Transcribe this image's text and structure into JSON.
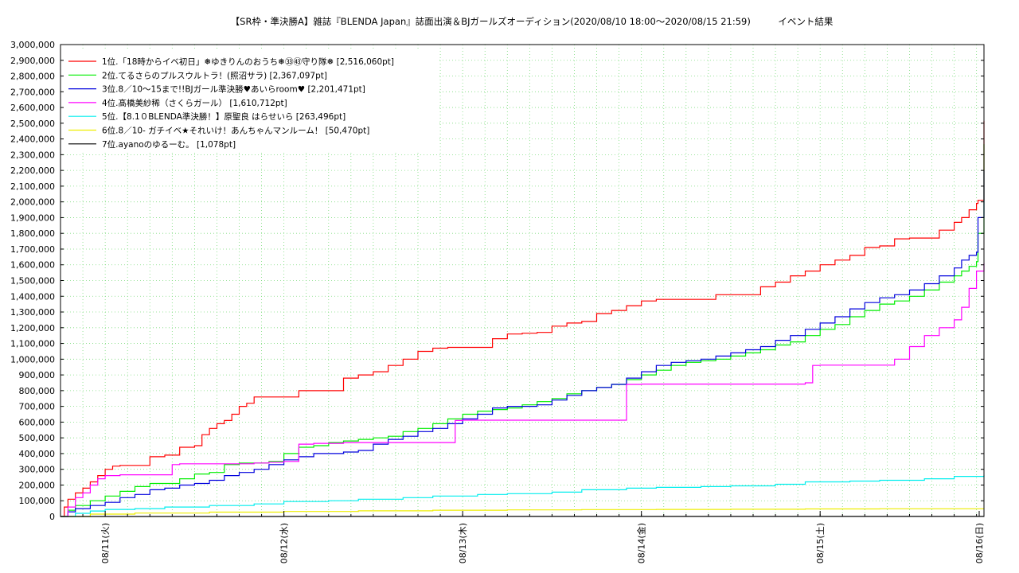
{
  "chart_data": {
    "type": "line",
    "title": "【SR枠・準決勝A】雑誌『BLENDA Japan』誌面出演＆BJガールズオーディション(2020/08/10 18:00〜2020/08/15 21:59)　　　イベント結果",
    "xlabel": "",
    "ylabel": "",
    "x_unit": "hours since 2020/08/10 18:00",
    "xlim": [
      0,
      124.0
    ],
    "ylim": [
      0,
      3000000
    ],
    "y_ticks": [
      0,
      100000,
      200000,
      300000,
      400000,
      500000,
      600000,
      700000,
      800000,
      900000,
      1000000,
      1100000,
      1200000,
      1300000,
      1400000,
      1500000,
      1600000,
      1700000,
      1800000,
      1900000,
      2000000,
      2100000,
      2200000,
      2300000,
      2400000,
      2500000,
      2600000,
      2700000,
      2800000,
      2900000,
      3000000
    ],
    "y_tick_labels": [
      "0",
      "100,000",
      "200,000",
      "300,000",
      "400,000",
      "500,000",
      "600,000",
      "700,000",
      "800,000",
      "900,000",
      "1,000,000",
      "1,100,000",
      "1,200,000",
      "1,300,000",
      "1,400,000",
      "1,500,000",
      "1,600,000",
      "1,700,000",
      "1,800,000",
      "1,900,000",
      "2,000,000",
      "2,100,000",
      "2,200,000",
      "2,300,000",
      "2,400,000",
      "2,500,000",
      "2,600,000",
      "2,700,000",
      "2,800,000",
      "2,900,000",
      "3,000,000"
    ],
    "x_ticks": [
      6,
      30,
      54,
      78,
      102,
      126
    ],
    "x_tick_labels": [
      "08/11(火)",
      "08/12(水)",
      "08/13(木)",
      "08/14(金)",
      "08/15(土)",
      "08/16(日)"
    ],
    "grid": true,
    "legend_position": "top-left",
    "series": [
      {
        "name": "1位.「18時からイベ初日」❅ゆきりんのおうち❅㉝㊸守り隊❅ [2,516,060pt]",
        "color": "#ff0000",
        "x": [
          0,
          0.5,
          1,
          2,
          3,
          4,
          5,
          6,
          7,
          8,
          9,
          10,
          12,
          14,
          16,
          18,
          19,
          20,
          21,
          22,
          23,
          24,
          25,
          26,
          27,
          28,
          30,
          32,
          34,
          36,
          38,
          40,
          42,
          44,
          46,
          48,
          50,
          52,
          54,
          56,
          58,
          60,
          62,
          64,
          66,
          68,
          70,
          72,
          74,
          76,
          78,
          80,
          82,
          84,
          86,
          88,
          90,
          92,
          94,
          96,
          98,
          100,
          102,
          104,
          106,
          108,
          110,
          112,
          114,
          116,
          118,
          120,
          121,
          122,
          123,
          123.2,
          124
        ],
        "values": [
          0,
          60000,
          110000,
          150000,
          180000,
          220000,
          260000,
          300000,
          320000,
          325000,
          325000,
          325000,
          380000,
          390000,
          440000,
          450000,
          520000,
          560000,
          590000,
          610000,
          650000,
          700000,
          720000,
          760000,
          760000,
          760000,
          760000,
          800000,
          800000,
          800000,
          880000,
          900000,
          920000,
          960000,
          1000000,
          1050000,
          1070000,
          1075000,
          1075000,
          1075000,
          1130000,
          1160000,
          1165000,
          1170000,
          1210000,
          1230000,
          1240000,
          1290000,
          1310000,
          1340000,
          1370000,
          1380000,
          1380000,
          1380000,
          1380000,
          1410000,
          1410000,
          1410000,
          1460000,
          1490000,
          1530000,
          1560000,
          1600000,
          1630000,
          1660000,
          1710000,
          1720000,
          1765000,
          1770000,
          1770000,
          1820000,
          1870000,
          1900000,
          1950000,
          1990000,
          2010000,
          2516060
        ]
      },
      {
        "name": "2位.てるさらのプルスウルトラ！(照沼サラ) [2,367,097pt]",
        "color": "#00ee00",
        "x": [
          0,
          1,
          2,
          4,
          6,
          8,
          10,
          12,
          14,
          16,
          18,
          20,
          22,
          24,
          26,
          28,
          30,
          32,
          34,
          36,
          38,
          40,
          42,
          44,
          46,
          48,
          50,
          52,
          54,
          56,
          58,
          60,
          62,
          64,
          66,
          68,
          70,
          72,
          74,
          76,
          78,
          80,
          82,
          84,
          86,
          88,
          90,
          92,
          94,
          96,
          98,
          100,
          102,
          104,
          106,
          108,
          110,
          112,
          114,
          116,
          118,
          120,
          121,
          122,
          123,
          123.2,
          124
        ],
        "values": [
          0,
          40000,
          70000,
          100000,
          130000,
          160000,
          190000,
          210000,
          210000,
          240000,
          270000,
          280000,
          330000,
          340000,
          340000,
          350000,
          400000,
          440000,
          450000,
          470000,
          480000,
          490000,
          500000,
          510000,
          540000,
          560000,
          590000,
          620000,
          650000,
          670000,
          680000,
          690000,
          710000,
          730000,
          750000,
          780000,
          800000,
          820000,
          840000,
          870000,
          900000,
          930000,
          960000,
          980000,
          990000,
          1000000,
          1020000,
          1040000,
          1060000,
          1090000,
          1110000,
          1150000,
          1190000,
          1220000,
          1270000,
          1310000,
          1350000,
          1370000,
          1400000,
          1440000,
          1490000,
          1530000,
          1560000,
          1590000,
          1620000,
          1800000,
          2367097
        ]
      },
      {
        "name": "3位.8／10〜15まで!!BJガール準決勝♥あいらroom♥ [2,201,471pt]",
        "color": "#0000dd",
        "x": [
          0,
          1,
          2,
          4,
          6,
          8,
          10,
          12,
          14,
          16,
          18,
          20,
          22,
          24,
          26,
          28,
          30,
          32,
          34,
          36,
          38,
          40,
          42,
          44,
          46,
          48,
          50,
          52,
          54,
          56,
          58,
          60,
          62,
          64,
          66,
          68,
          70,
          72,
          74,
          76,
          78,
          80,
          82,
          84,
          86,
          88,
          90,
          92,
          94,
          96,
          98,
          100,
          102,
          104,
          106,
          108,
          110,
          112,
          114,
          116,
          118,
          120,
          121,
          122,
          123,
          123.2,
          124
        ],
        "values": [
          0,
          30000,
          50000,
          70000,
          90000,
          120000,
          140000,
          170000,
          180000,
          200000,
          210000,
          230000,
          260000,
          280000,
          300000,
          330000,
          360000,
          380000,
          400000,
          400000,
          410000,
          420000,
          460000,
          490000,
          510000,
          540000,
          560000,
          590000,
          620000,
          650000,
          690000,
          700000,
          700000,
          710000,
          740000,
          770000,
          800000,
          820000,
          840000,
          880000,
          920000,
          960000,
          980000,
          990000,
          1000000,
          1020000,
          1040000,
          1060000,
          1080000,
          1120000,
          1150000,
          1190000,
          1230000,
          1270000,
          1320000,
          1360000,
          1390000,
          1410000,
          1440000,
          1480000,
          1530000,
          1580000,
          1630000,
          1660000,
          1680000,
          1900000,
          2201471
        ]
      },
      {
        "name": "4位.髙橋美紗稀（さくらガール） [1,610,712pt]",
        "color": "#ff00ff",
        "x": [
          0,
          1,
          2,
          3,
          4,
          5,
          6,
          8,
          10,
          12,
          14,
          15,
          16,
          20,
          24,
          26,
          28,
          30,
          32,
          34,
          38,
          42,
          46,
          50,
          52,
          53,
          54,
          56,
          60,
          64,
          68,
          70,
          72,
          74,
          76,
          78,
          80,
          84,
          88,
          92,
          96,
          100,
          101,
          102,
          104,
          106,
          108,
          110,
          112,
          114,
          116,
          118,
          120,
          121,
          122,
          123,
          124
        ],
        "values": [
          0,
          60000,
          120000,
          150000,
          200000,
          240000,
          260000,
          265000,
          265000,
          265000,
          265000,
          330000,
          335000,
          335000,
          335000,
          340000,
          345000,
          350000,
          460000,
          465000,
          470000,
          470000,
          470000,
          470000,
          470000,
          610000,
          612000,
          612000,
          612000,
          612000,
          612000,
          612000,
          612000,
          612000,
          840000,
          842000,
          842000,
          842000,
          842000,
          842000,
          842000,
          850000,
          960000,
          962000,
          962000,
          962000,
          962000,
          962000,
          1000000,
          1080000,
          1150000,
          1200000,
          1250000,
          1330000,
          1450000,
          1560000,
          1610712
        ]
      },
      {
        "name": "5位.【8.1０BLENDA準決勝！】原聖良 はらせいら [263,496pt]",
        "color": "#00eeee",
        "x": [
          0,
          2,
          4,
          6,
          10,
          14,
          20,
          26,
          30,
          36,
          40,
          46,
          50,
          56,
          60,
          66,
          70,
          76,
          80,
          86,
          90,
          96,
          100,
          106,
          110,
          116,
          120,
          124
        ],
        "values": [
          0,
          20000,
          35000,
          45000,
          50000,
          60000,
          70000,
          80000,
          95000,
          100000,
          110000,
          120000,
          130000,
          140000,
          145000,
          155000,
          170000,
          180000,
          185000,
          190000,
          195000,
          205000,
          220000,
          225000,
          230000,
          240000,
          255000,
          263496
        ]
      },
      {
        "name": "6位.8／10- ガチイベ★それいけ！あんちゃんマンルーム！ [50,470pt]",
        "color": "#eeee00",
        "x": [
          0,
          4,
          10,
          20,
          30,
          40,
          50,
          60,
          70,
          80,
          90,
          100,
          110,
          124
        ],
        "values": [
          0,
          15000,
          22000,
          28000,
          32000,
          36000,
          40000,
          42000,
          44000,
          45000,
          46000,
          48000,
          49000,
          50470
        ]
      },
      {
        "name": "7位.ayanoのゆるーむ。 [1,078pt]",
        "color": "#000000",
        "x": [
          0,
          30,
          60,
          90,
          124
        ],
        "values": [
          0,
          500,
          800,
          1000,
          1078
        ]
      }
    ]
  }
}
